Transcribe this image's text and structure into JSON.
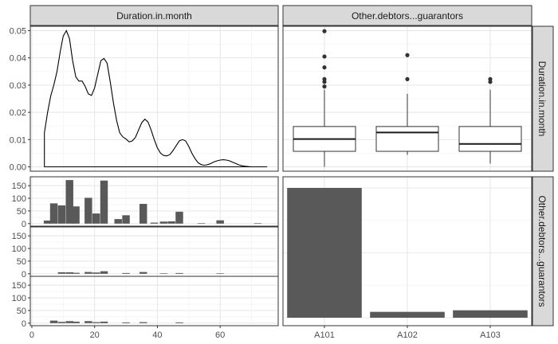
{
  "chart_data": {
    "type": "pairs",
    "strip_labels": {
      "col1": "Duration.in.month",
      "col2": "Other.debtors...guarantors"
    },
    "grid": true,
    "density": {
      "variable": "Duration.in.month",
      "x": [
        4,
        5,
        6,
        7,
        8,
        9,
        10,
        11,
        12,
        13,
        14,
        15,
        16,
        17,
        18,
        19,
        20,
        21,
        22,
        23,
        24,
        25,
        26,
        27,
        28,
        29,
        30,
        31,
        32,
        33,
        34,
        35,
        36,
        37,
        38,
        39,
        40,
        41,
        42,
        43,
        44,
        45,
        46,
        47,
        48,
        49,
        50,
        51,
        52,
        53,
        54,
        55,
        56,
        57,
        58,
        59,
        60,
        61,
        62,
        63,
        64,
        65,
        66,
        67,
        68,
        69,
        70,
        71,
        72,
        73,
        74,
        75
      ],
      "y": [
        0.0125,
        0.02,
        0.026,
        0.03,
        0.035,
        0.042,
        0.048,
        0.05,
        0.047,
        0.039,
        0.033,
        0.0315,
        0.0315,
        0.0295,
        0.0268,
        0.0262,
        0.029,
        0.034,
        0.039,
        0.0398,
        0.038,
        0.031,
        0.0235,
        0.017,
        0.0125,
        0.011,
        0.0102,
        0.0092,
        0.0095,
        0.0108,
        0.0135,
        0.0162,
        0.0175,
        0.0165,
        0.0135,
        0.01,
        0.007,
        0.005,
        0.0042,
        0.004,
        0.0045,
        0.006,
        0.0078,
        0.0095,
        0.01,
        0.0095,
        0.0075,
        0.005,
        0.003,
        0.0015,
        0.0008,
        0.0006,
        0.0008,
        0.0012,
        0.0018,
        0.0022,
        0.0025,
        0.0026,
        0.0025,
        0.0022,
        0.0017,
        0.0012,
        0.0007,
        0.0004,
        0.0002,
        0.0001,
        0,
        0,
        0,
        0,
        0,
        0
      ],
      "x_baseline": [
        4,
        75
      ],
      "ylim": [
        -0.0016,
        0.0516
      ],
      "yticks": [
        0.0,
        0.01,
        0.02,
        0.03,
        0.04,
        0.05
      ],
      "ytick_labels": [
        "0.00",
        "0.01",
        "0.02",
        "0.03",
        "0.04",
        "0.05"
      ]
    },
    "boxplots": {
      "categories": [
        "A101",
        "A102",
        "A103"
      ],
      "yticks_shared_with_density": true,
      "boxes": [
        {
          "category": "A101",
          "lower_whisker": 0.0,
          "q1": 0.0057,
          "median": 0.0102,
          "q3": 0.0148,
          "upper_whisker": 0.0283,
          "outliers": [
            0.0295,
            0.0312,
            0.0322,
            0.0365,
            0.0405,
            0.0498
          ]
        },
        {
          "category": "A102",
          "lower_whisker": 0.0044,
          "q1": 0.0057,
          "median": 0.0126,
          "q3": 0.0148,
          "upper_whisker": 0.0268,
          "outliers": [
            0.0322,
            0.041
          ]
        },
        {
          "category": "A103",
          "lower_whisker": 0.0012,
          "q1": 0.0057,
          "median": 0.0084,
          "q3": 0.0148,
          "upper_whisker": 0.0283,
          "outliers": [
            0.0312,
            0.0322
          ]
        }
      ]
    },
    "histograms": {
      "variable": "Duration.in.month",
      "bin_width": 2.4,
      "ylim": [
        -10,
        185
      ],
      "yticks": [
        0,
        50,
        100,
        150
      ],
      "panels": [
        {
          "category": "A101",
          "bins": [
            {
              "x": 5,
              "count": 12
            },
            {
              "x": 7,
              "count": 80
            },
            {
              "x": 9.5,
              "count": 72
            },
            {
              "x": 12,
              "count": 172
            },
            {
              "x": 14,
              "count": 68
            },
            {
              "x": 18,
              "count": 102
            },
            {
              "x": 20.5,
              "count": 40
            },
            {
              "x": 23,
              "count": 170
            },
            {
              "x": 27.5,
              "count": 18
            },
            {
              "x": 30,
              "count": 33
            },
            {
              "x": 35.5,
              "count": 78
            },
            {
              "x": 39,
              "count": 4
            },
            {
              "x": 42,
              "count": 8
            },
            {
              "x": 44.5,
              "count": 9
            },
            {
              "x": 47,
              "count": 47
            },
            {
              "x": 54,
              "count": 2
            },
            {
              "x": 60,
              "count": 13
            },
            {
              "x": 72,
              "count": 2
            }
          ]
        },
        {
          "category": "A102",
          "bins": [
            {
              "x": 9.5,
              "count": 6
            },
            {
              "x": 12,
              "count": 6
            },
            {
              "x": 14,
              "count": 4
            },
            {
              "x": 18,
              "count": 7
            },
            {
              "x": 20.5,
              "count": 5
            },
            {
              "x": 23,
              "count": 10
            },
            {
              "x": 30,
              "count": 3
            },
            {
              "x": 35.5,
              "count": 7
            },
            {
              "x": 42,
              "count": 2
            },
            {
              "x": 47,
              "count": 3
            },
            {
              "x": 60,
              "count": 2
            }
          ]
        },
        {
          "category": "A103",
          "bins": [
            {
              "x": 7,
              "count": 10
            },
            {
              "x": 9.5,
              "count": 5
            },
            {
              "x": 12,
              "count": 8
            },
            {
              "x": 14,
              "count": 6
            },
            {
              "x": 18,
              "count": 8
            },
            {
              "x": 20.5,
              "count": 4
            },
            {
              "x": 23,
              "count": 6
            },
            {
              "x": 30,
              "count": 3
            },
            {
              "x": 35.5,
              "count": 4
            },
            {
              "x": 47,
              "count": 3
            }
          ]
        }
      ]
    },
    "bars": {
      "variable": "Other.debtors...guarantors",
      "categories": [
        "A101",
        "A102",
        "A103"
      ],
      "values": [
        907,
        41,
        52
      ]
    },
    "x_axis_numeric": {
      "ticks": [
        0,
        20,
        40,
        60
      ],
      "xlim": [
        -0.5,
        78.5
      ]
    }
  }
}
